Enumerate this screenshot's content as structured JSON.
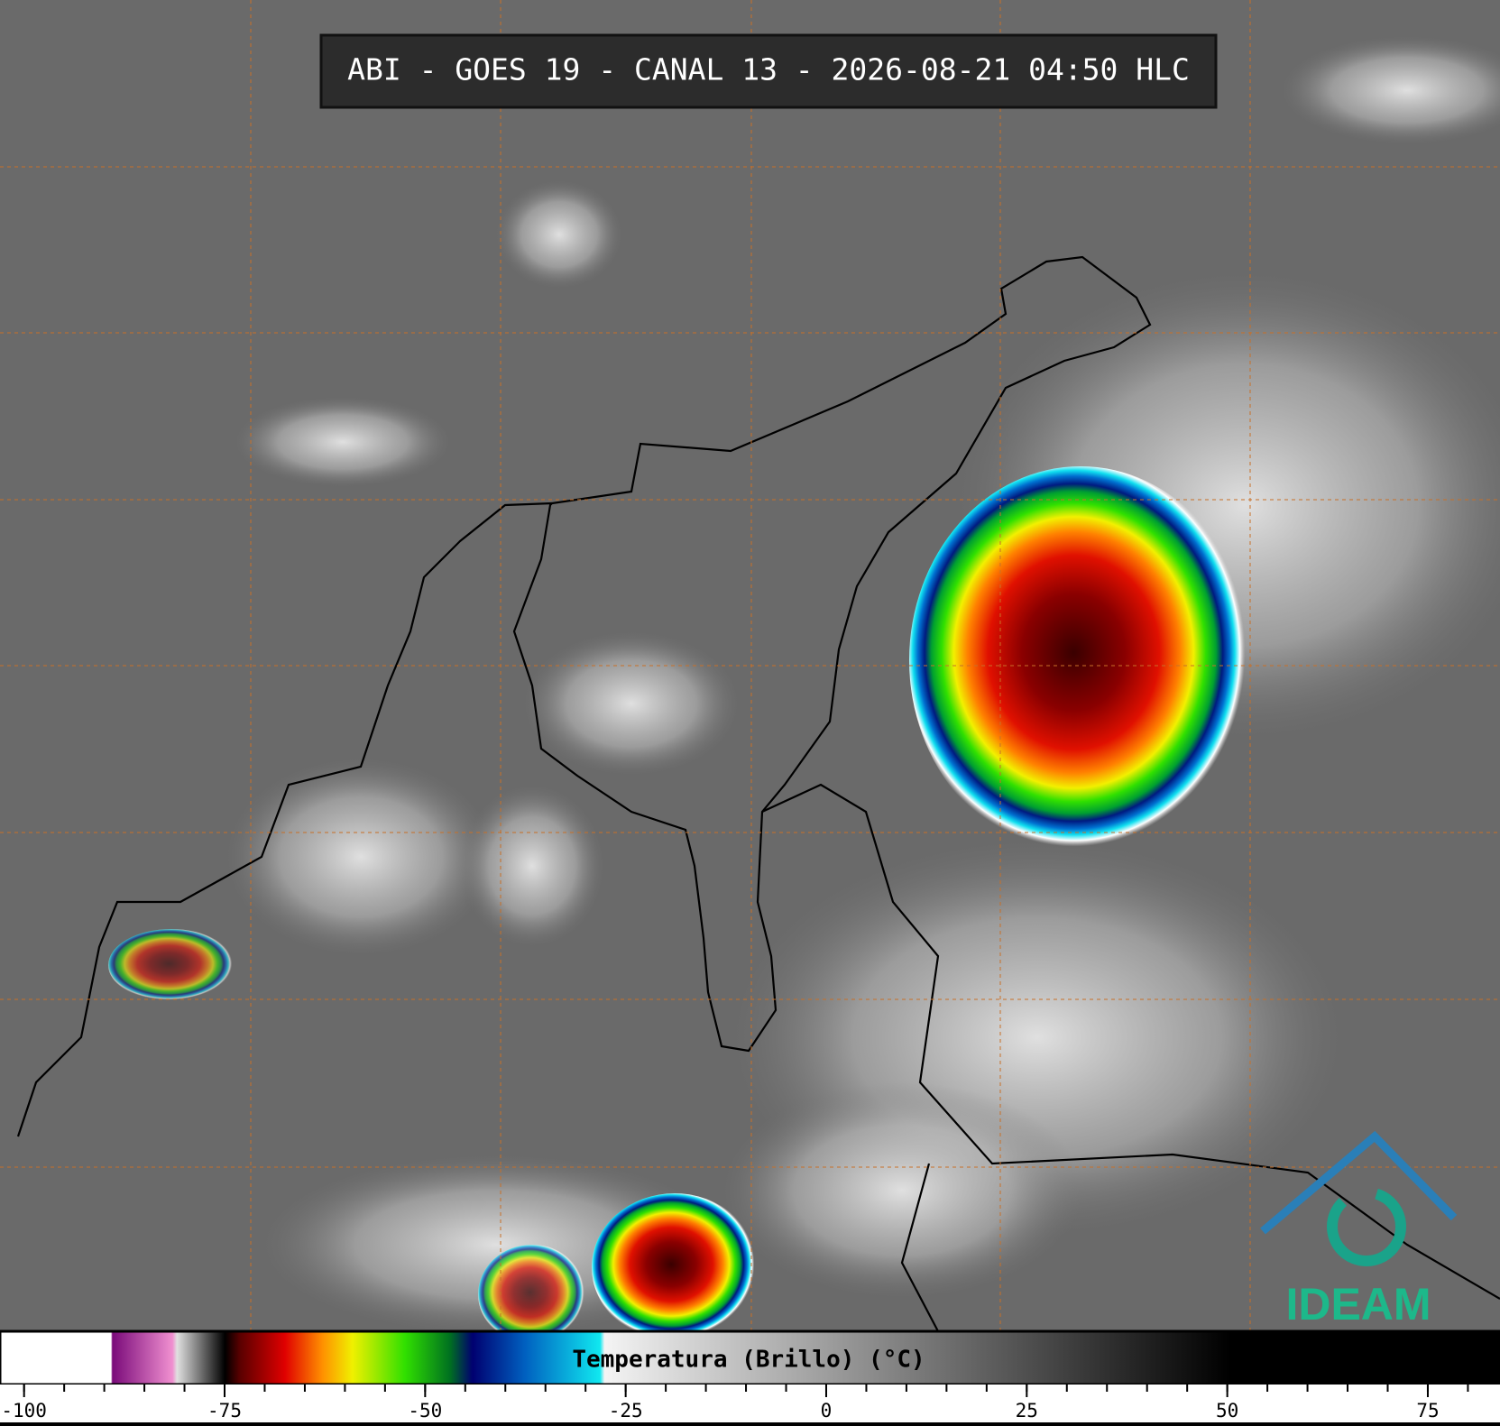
{
  "header": {
    "title": "ABI - GOES 19 - CANAL 13 - 2026-08-21 04:50 HLC"
  },
  "colorbar": {
    "label": "Temperatura (Brillo) (°C)",
    "range": [
      -103,
      84
    ],
    "ticks": [
      -100,
      -75,
      -50,
      -25,
      0,
      25,
      50,
      75
    ],
    "minor_step": 5
  },
  "logo": {
    "text": "IDEAM"
  }
}
